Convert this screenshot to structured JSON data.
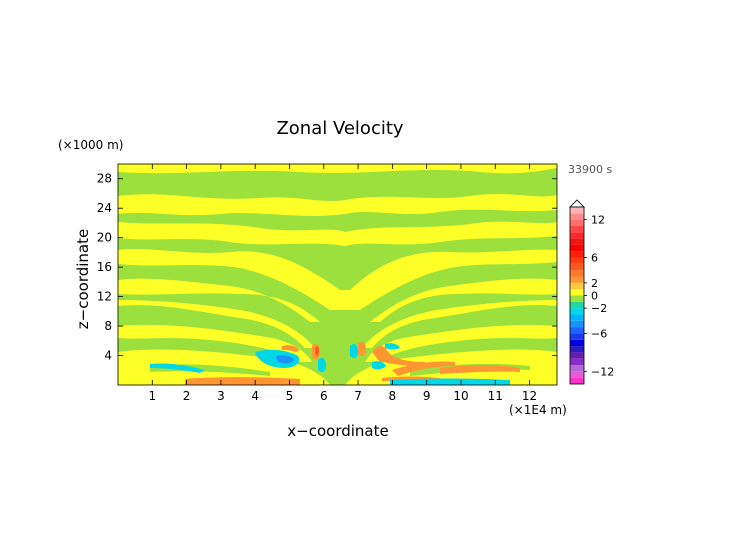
{
  "chart_data": {
    "type": "heatmap",
    "title": "Zonal Velocity",
    "xlabel": "x−coordinate",
    "ylabel": "z−coordinate",
    "x_unit": "(×1E4 m)",
    "y_unit": "(×1000 m)",
    "time_label": "33900 s",
    "xlim": [
      0,
      12.8
    ],
    "ylim": [
      0,
      30
    ],
    "x_ticks": [
      1,
      2,
      3,
      4,
      5,
      6,
      7,
      8,
      9,
      10,
      11,
      12
    ],
    "y_ticks": [
      4,
      8,
      12,
      16,
      20,
      24,
      28
    ],
    "colorbar": {
      "range": [
        -14,
        14
      ],
      "ticks": [
        12,
        6,
        2,
        0,
        -2,
        -6,
        -12
      ],
      "tick_labels": [
        "12",
        "6",
        "2",
        "0",
        "−2",
        "−6",
        "−12"
      ],
      "levels": [
        {
          "from": -14,
          "to": -13,
          "color": "#ff33cc"
        },
        {
          "from": -13,
          "to": -12,
          "color": "#e85ad8"
        },
        {
          "from": -12,
          "to": -11,
          "color": "#b26ad8"
        },
        {
          "from": -11,
          "to": -10,
          "color": "#8c2cc8"
        },
        {
          "from": -10,
          "to": -9,
          "color": "#6a1cb0"
        },
        {
          "from": -9,
          "to": -8,
          "color": "#2a1cc0"
        },
        {
          "from": -8,
          "to": -7,
          "color": "#0000e0"
        },
        {
          "from": -7,
          "to": -6,
          "color": "#1a3cf0"
        },
        {
          "from": -6,
          "to": -5,
          "color": "#1e64ff"
        },
        {
          "from": -5,
          "to": -4,
          "color": "#1e90ff"
        },
        {
          "from": -4,
          "to": -3,
          "color": "#00b4ff"
        },
        {
          "from": -3,
          "to": -2,
          "color": "#00d8e8"
        },
        {
          "from": -2,
          "to": -1,
          "color": "#20d8a0"
        },
        {
          "from": -1,
          "to": 0,
          "color": "#9be03c"
        },
        {
          "from": 0,
          "to": 1,
          "color": "#ffff28"
        },
        {
          "from": 1,
          "to": 2,
          "color": "#ffc83c"
        },
        {
          "from": 2,
          "to": 3,
          "color": "#ff9632"
        },
        {
          "from": 3,
          "to": 4,
          "color": "#ff7828"
        },
        {
          "from": 4,
          "to": 5,
          "color": "#ff5a1e"
        },
        {
          "from": 5,
          "to": 6,
          "color": "#ff3c14"
        },
        {
          "from": 6,
          "to": 7,
          "color": "#ff1e0a"
        },
        {
          "from": 7,
          "to": 8,
          "color": "#ff0000"
        },
        {
          "from": 8,
          "to": 9,
          "color": "#f01414"
        },
        {
          "from": 9,
          "to": 10,
          "color": "#ff2828"
        },
        {
          "from": 10,
          "to": 11,
          "color": "#ff4646"
        },
        {
          "from": 11,
          "to": 12,
          "color": "#ff6e6e"
        },
        {
          "from": 12,
          "to": 13,
          "color": "#ff8c8c"
        },
        {
          "from": 13,
          "to": 14,
          "color": "#ffb4b4"
        }
      ]
    },
    "field_colors": {
      "background": "#9be03c",
      "positive_weak": "#ffff28",
      "positive_moderate": "#ff9632",
      "negative_moderate": "#00d8e8",
      "negative_strong": "#1e90ff"
    }
  }
}
